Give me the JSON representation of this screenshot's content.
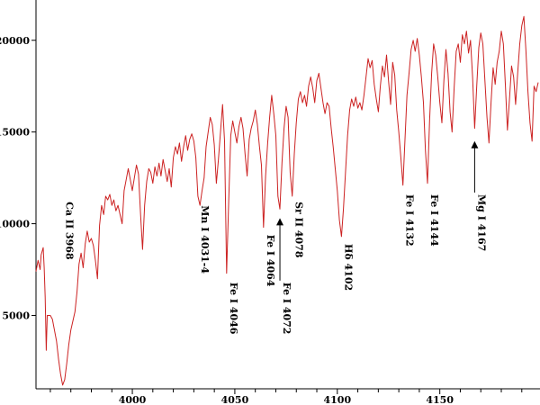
{
  "chart_data": {
    "type": "line",
    "title": "",
    "xlabel": "",
    "ylabel": "",
    "xlim": [
      3953,
      4198
    ],
    "ylim": [
      1000,
      22000
    ],
    "grid": false,
    "legend": "none",
    "line_color": "#cc2222",
    "x_ticks": [
      4000,
      4050,
      4100,
      4150
    ],
    "y_ticks": [
      5000,
      10000,
      15000,
      20000
    ],
    "series": [
      {
        "points": [
          [
            3953,
            7400
          ],
          [
            3954,
            8000
          ],
          [
            3955,
            7500
          ],
          [
            3955.5,
            8300
          ],
          [
            3956.5,
            8700
          ],
          [
            3957,
            7600
          ],
          [
            3957.5,
            6000
          ],
          [
            3958,
            3100
          ],
          [
            3958.5,
            5000
          ],
          [
            3960,
            5000
          ],
          [
            3961,
            4800
          ],
          [
            3962,
            4200
          ],
          [
            3963,
            3600
          ],
          [
            3964,
            2600
          ],
          [
            3965,
            1800
          ],
          [
            3966,
            1200
          ],
          [
            3967,
            1500
          ],
          [
            3968,
            2400
          ],
          [
            3969,
            3400
          ],
          [
            3970,
            4200
          ],
          [
            3971,
            4700
          ],
          [
            3972,
            5200
          ],
          [
            3973,
            6300
          ],
          [
            3974,
            7800
          ],
          [
            3975,
            8400
          ],
          [
            3976,
            7600
          ],
          [
            3977,
            8900
          ],
          [
            3978,
            9600
          ],
          [
            3979,
            9000
          ],
          [
            3980,
            9200
          ],
          [
            3981,
            8800
          ],
          [
            3982,
            8000
          ],
          [
            3983,
            7000
          ],
          [
            3984,
            9900
          ],
          [
            3985,
            11000
          ],
          [
            3986,
            10500
          ],
          [
            3987,
            11500
          ],
          [
            3988,
            11300
          ],
          [
            3989,
            11600
          ],
          [
            3990,
            11000
          ],
          [
            3991,
            11300
          ],
          [
            3992,
            10700
          ],
          [
            3993,
            11000
          ],
          [
            3994,
            10500
          ],
          [
            3995,
            10000
          ],
          [
            3996,
            11800
          ],
          [
            3997,
            12400
          ],
          [
            3998,
            13000
          ],
          [
            3999,
            12400
          ],
          [
            4000,
            11800
          ],
          [
            4001,
            12500
          ],
          [
            4002,
            13200
          ],
          [
            4003,
            12700
          ],
          [
            4004,
            10500
          ],
          [
            4005,
            8600
          ],
          [
            4006,
            11000
          ],
          [
            4007,
            12300
          ],
          [
            4008,
            13000
          ],
          [
            4009,
            12800
          ],
          [
            4010,
            12200
          ],
          [
            4011,
            13100
          ],
          [
            4012,
            12600
          ],
          [
            4013,
            13300
          ],
          [
            4014,
            12600
          ],
          [
            4015,
            13500
          ],
          [
            4016,
            12900
          ],
          [
            4017,
            12300
          ],
          [
            4018,
            13000
          ],
          [
            4019,
            12000
          ],
          [
            4020,
            13600
          ],
          [
            4021,
            14200
          ],
          [
            4022,
            13800
          ],
          [
            4023,
            14400
          ],
          [
            4024,
            13400
          ],
          [
            4025,
            14200
          ],
          [
            4026,
            14800
          ],
          [
            4027,
            14000
          ],
          [
            4028,
            14600
          ],
          [
            4029,
            14900
          ],
          [
            4030,
            14500
          ],
          [
            4031,
            13600
          ],
          [
            4032,
            11500
          ],
          [
            4033,
            11000
          ],
          [
            4034,
            11800
          ],
          [
            4035,
            12500
          ],
          [
            4036,
            14200
          ],
          [
            4037,
            15000
          ],
          [
            4038,
            15800
          ],
          [
            4039,
            15400
          ],
          [
            4040,
            14300
          ],
          [
            4041,
            12200
          ],
          [
            4042,
            13500
          ],
          [
            4043,
            15000
          ],
          [
            4044,
            16500
          ],
          [
            4045,
            14500
          ],
          [
            4046,
            7300
          ],
          [
            4047,
            11200
          ],
          [
            4048,
            14800
          ],
          [
            4049,
            15600
          ],
          [
            4050,
            15000
          ],
          [
            4051,
            14400
          ],
          [
            4052,
            15300
          ],
          [
            4053,
            15800
          ],
          [
            4054,
            15200
          ],
          [
            4055,
            13800
          ],
          [
            4056,
            12600
          ],
          [
            4057,
            14600
          ],
          [
            4058,
            15200
          ],
          [
            4059,
            15600
          ],
          [
            4060,
            16200
          ],
          [
            4061,
            15400
          ],
          [
            4062,
            14200
          ],
          [
            4063,
            13200
          ],
          [
            4064,
            9800
          ],
          [
            4065,
            12600
          ],
          [
            4066,
            14400
          ],
          [
            4067,
            15800
          ],
          [
            4068,
            17000
          ],
          [
            4069,
            16000
          ],
          [
            4070,
            14800
          ],
          [
            4071,
            11500
          ],
          [
            4072,
            10800
          ],
          [
            4073,
            13300
          ],
          [
            4074,
            15200
          ],
          [
            4075,
            16400
          ],
          [
            4076,
            15800
          ],
          [
            4077,
            12800
          ],
          [
            4078,
            11500
          ],
          [
            4079,
            13800
          ],
          [
            4080,
            15500
          ],
          [
            4081,
            16800
          ],
          [
            4082,
            17200
          ],
          [
            4083,
            16600
          ],
          [
            4084,
            17000
          ],
          [
            4085,
            16400
          ],
          [
            4086,
            17500
          ],
          [
            4087,
            18000
          ],
          [
            4088,
            17400
          ],
          [
            4089,
            16600
          ],
          [
            4090,
            17800
          ],
          [
            4091,
            18200
          ],
          [
            4092,
            17400
          ],
          [
            4093,
            16600
          ],
          [
            4094,
            16000
          ],
          [
            4095,
            16600
          ],
          [
            4096,
            16400
          ],
          [
            4097,
            15200
          ],
          [
            4098,
            14200
          ],
          [
            4099,
            13000
          ],
          [
            4100,
            11800
          ],
          [
            4101,
            10200
          ],
          [
            4102,
            9300
          ],
          [
            4103,
            10800
          ],
          [
            4104,
            12800
          ],
          [
            4105,
            14800
          ],
          [
            4106,
            16200
          ],
          [
            4107,
            16800
          ],
          [
            4108,
            16400
          ],
          [
            4109,
            16900
          ],
          [
            4110,
            16300
          ],
          [
            4111,
            16600
          ],
          [
            4112,
            16200
          ],
          [
            4113,
            17000
          ],
          [
            4114,
            18000
          ],
          [
            4115,
            19000
          ],
          [
            4116,
            18500
          ],
          [
            4117,
            18900
          ],
          [
            4118,
            17600
          ],
          [
            4119,
            16800
          ],
          [
            4120,
            16100
          ],
          [
            4121,
            17500
          ],
          [
            4122,
            18600
          ],
          [
            4123,
            18000
          ],
          [
            4124,
            19200
          ],
          [
            4125,
            17800
          ],
          [
            4126,
            16500
          ],
          [
            4127,
            18800
          ],
          [
            4128,
            18100
          ],
          [
            4129,
            16200
          ],
          [
            4130,
            15000
          ],
          [
            4131,
            13600
          ],
          [
            4132,
            12100
          ],
          [
            4133,
            14600
          ],
          [
            4134,
            17000
          ],
          [
            4135,
            18200
          ],
          [
            4136,
            19500
          ],
          [
            4137,
            20000
          ],
          [
            4138,
            19400
          ],
          [
            4139,
            20100
          ],
          [
            4140,
            19200
          ],
          [
            4141,
            18000
          ],
          [
            4142,
            16600
          ],
          [
            4143,
            14000
          ],
          [
            4144,
            12200
          ],
          [
            4145,
            15600
          ],
          [
            4146,
            18200
          ],
          [
            4147,
            19800
          ],
          [
            4148,
            19200
          ],
          [
            4149,
            18000
          ],
          [
            4150,
            16600
          ],
          [
            4151,
            15500
          ],
          [
            4152,
            17800
          ],
          [
            4153,
            19500
          ],
          [
            4154,
            18200
          ],
          [
            4155,
            16100
          ],
          [
            4156,
            15000
          ],
          [
            4157,
            17400
          ],
          [
            4158,
            19400
          ],
          [
            4159,
            19800
          ],
          [
            4160,
            18800
          ],
          [
            4161,
            20300
          ],
          [
            4162,
            19800
          ],
          [
            4163,
            20500
          ],
          [
            4164,
            19300
          ],
          [
            4165,
            20000
          ],
          [
            4166,
            18000
          ],
          [
            4167,
            15200
          ],
          [
            4168,
            17500
          ],
          [
            4169,
            19600
          ],
          [
            4170,
            20400
          ],
          [
            4171,
            19800
          ],
          [
            4172,
            17800
          ],
          [
            4173,
            15800
          ],
          [
            4174,
            14400
          ],
          [
            4175,
            16600
          ],
          [
            4176,
            18500
          ],
          [
            4177,
            17600
          ],
          [
            4178,
            18800
          ],
          [
            4179,
            19400
          ],
          [
            4180,
            20500
          ],
          [
            4181,
            19800
          ],
          [
            4182,
            17500
          ],
          [
            4183,
            15100
          ],
          [
            4184,
            16800
          ],
          [
            4185,
            18600
          ],
          [
            4186,
            18000
          ],
          [
            4187,
            16500
          ],
          [
            4188,
            18200
          ],
          [
            4189,
            19800
          ],
          [
            4190,
            20800
          ],
          [
            4191,
            21300
          ],
          [
            4192,
            19500
          ],
          [
            4193,
            17200
          ],
          [
            4194,
            15500
          ],
          [
            4195,
            14500
          ],
          [
            4196,
            17500
          ],
          [
            4197,
            17200
          ],
          [
            4198,
            17700
          ]
        ]
      }
    ],
    "annotations": [
      {
        "text": "Ca II 3968",
        "x": 3966,
        "y": 11200,
        "arrow": false
      },
      {
        "text": "Mn I 4031-4",
        "x": 4032,
        "y": 11000,
        "arrow": false
      },
      {
        "text": "Fe I 4046",
        "x": 4046,
        "y": 6800,
        "arrow": false
      },
      {
        "text": "Fe I 4064",
        "x": 4064,
        "y": 9400,
        "arrow": false
      },
      {
        "text": "Fe I 4072",
        "x": 4072,
        "y": 6800,
        "arrow": true,
        "arrow_to_y": 10500
      },
      {
        "text": "Sr II 4078",
        "x": 4078,
        "y": 11200,
        "arrow": false
      },
      {
        "text": "Hδ 4102",
        "x": 4102,
        "y": 8900,
        "arrow": false
      },
      {
        "text": "Fe I 4132",
        "x": 4132,
        "y": 11600,
        "arrow": false
      },
      {
        "text": "Fe I 4144",
        "x": 4144,
        "y": 11600,
        "arrow": false
      },
      {
        "text": "Mg I 4167",
        "x": 4167,
        "y": 11600,
        "arrow": true,
        "arrow_to_y": 14700
      }
    ]
  }
}
